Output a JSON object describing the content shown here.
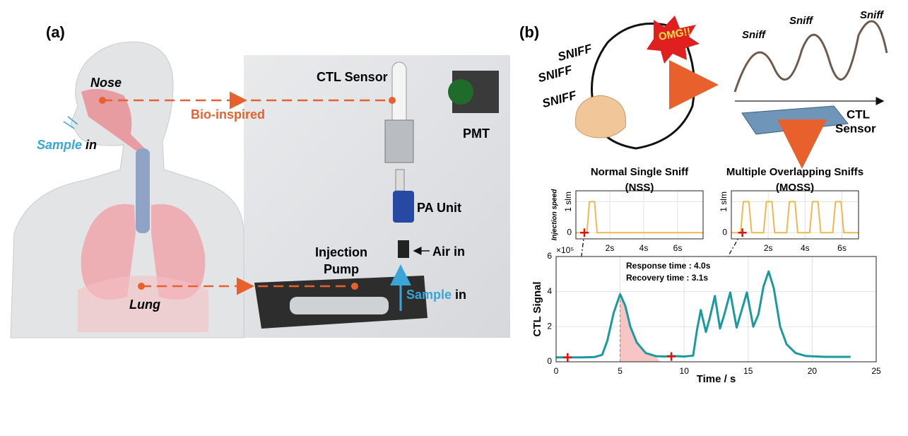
{
  "panel_a": {
    "label": "(a)",
    "nose": "Nose",
    "bio_inspired": "Bio-inspired",
    "sample_in": [
      "Sample",
      "in"
    ],
    "lung": "Lung",
    "ctl_sensor": "CTL Sensor",
    "pmt": "PMT",
    "pa_unit": "PA Unit",
    "air_in": "Air in",
    "injection_pump": [
      "Injection",
      "Pump"
    ],
    "device_sample_in": [
      "Sample",
      "in"
    ]
  },
  "panel_b": {
    "label": "(b)",
    "sniff_words": [
      "SNIFF",
      "SNIFF",
      "SNIFF"
    ],
    "omg": "OMG!!",
    "sniff_peaks": [
      "Sniff",
      "Sniff",
      "Sniff"
    ],
    "ctl_sensor": [
      "CTL",
      "Sensor"
    ]
  },
  "chart_data": [
    {
      "type": "line",
      "title": "Normal Single Sniff",
      "subtitle": "(NSS)",
      "ylabel": "Injection speed",
      "color": "#f2b84b",
      "grid": true,
      "xlim": [
        0,
        7.5
      ],
      "ylim": [
        -0.2,
        1.35
      ],
      "xticks": [
        {
          "value": 2,
          "label": "2s"
        },
        {
          "value": 4,
          "label": "4s"
        },
        {
          "value": 6,
          "label": "6s"
        }
      ],
      "yticks": [
        0,
        {
          "value": 1,
          "label": "1 slm"
        }
      ],
      "x": [
        0,
        0.65,
        0.8,
        1.1,
        1.25,
        7.5
      ],
      "values": [
        0,
        0,
        1,
        1,
        0,
        0
      ],
      "markers": [
        {
          "x": 0.5,
          "y": 0
        }
      ]
    },
    {
      "type": "line",
      "title": "Multiple Overlapping Sniffs",
      "subtitle": "(MOSS)",
      "color": "#f2b84b",
      "grid": true,
      "xlim": [
        0,
        6.9
      ],
      "ylim": [
        -0.2,
        1.35
      ],
      "xticks": [
        {
          "value": 2,
          "label": "2s"
        },
        {
          "value": 4,
          "label": "4s"
        },
        {
          "value": 6,
          "label": "6s"
        }
      ],
      "yticks": [
        0,
        {
          "value": 1,
          "label": "1 slm"
        }
      ],
      "x": [
        0,
        0.5,
        0.65,
        0.95,
        1.1,
        1.75,
        1.9,
        2.2,
        2.35,
        3.0,
        3.15,
        3.45,
        3.6,
        4.25,
        4.4,
        4.7,
        4.85,
        5.5,
        5.65,
        5.95,
        6.1,
        6.9
      ],
      "values": [
        0,
        0,
        1,
        1,
        0,
        0,
        1,
        1,
        0,
        0,
        1,
        1,
        0,
        0,
        1,
        1,
        0,
        0,
        1,
        1,
        0,
        0
      ],
      "markers": [
        {
          "x": 0.6,
          "y": 0
        }
      ]
    },
    {
      "type": "line",
      "ylabel": "CTL Signal",
      "xlabel": "Time / s",
      "y_multiplier": "×10⁵",
      "color": "#1a9aa0",
      "grid": true,
      "annotations": [
        "Response time : 4.0s",
        "Recovery time : 3.1s"
      ],
      "xlim": [
        0,
        25
      ],
      "ylim": [
        0,
        6
      ],
      "xticks": [
        0,
        5,
        10,
        15,
        20,
        25
      ],
      "yticks": [
        0,
        2,
        4,
        6
      ],
      "x": [
        0,
        1,
        2,
        3,
        3.6,
        4,
        4.5,
        5,
        5.4,
        5.8,
        6.3,
        7,
        7.8,
        8.5,
        9,
        10,
        10.7,
        11,
        11.3,
        11.7,
        12,
        12.4,
        12.8,
        13.1,
        13.6,
        14.1,
        14.4,
        14.9,
        15.4,
        15.8,
        16.2,
        16.6,
        17,
        17.5,
        18,
        18.7,
        19.5,
        21,
        23
      ],
      "values": [
        0.25,
        0.25,
        0.25,
        0.27,
        0.4,
        1.2,
        2.8,
        3.85,
        3.2,
        2.0,
        1.1,
        0.5,
        0.32,
        0.3,
        0.33,
        0.3,
        0.35,
        1.8,
        2.95,
        1.7,
        2.5,
        3.75,
        1.9,
        2.6,
        3.95,
        1.95,
        2.7,
        3.95,
        2.0,
        2.7,
        4.3,
        5.15,
        4.2,
        2.0,
        1.0,
        0.5,
        0.33,
        0.28,
        0.28
      ],
      "shaded_xrange": [
        5,
        8.1
      ],
      "markers": [
        {
          "x": 0.9,
          "y": 0.25
        },
        {
          "x": 9,
          "y": 0.3
        }
      ]
    }
  ]
}
